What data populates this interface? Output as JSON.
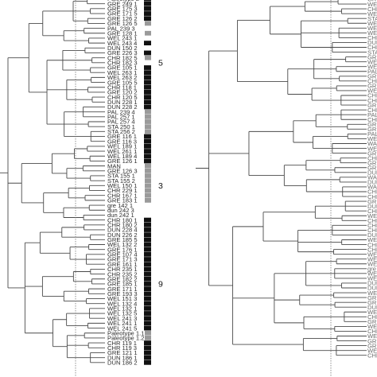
{
  "colors": {
    "branch": "#4a4a4a",
    "dark_block": "#111111",
    "grey_block": "#9a9a9a",
    "cutoff_line": "#777777"
  },
  "left_tree": {
    "leaves": [
      {
        "label": "Paleotype 2",
        "group": "D"
      },
      {
        "label": "GRE 249 1",
        "group": "D"
      },
      {
        "label": "GRE 175 3",
        "group": "D"
      },
      {
        "label": "GRE 171 5",
        "group": "D"
      },
      {
        "label": "GRE 126 2",
        "group": "D"
      },
      {
        "label": "GRE 126 5",
        "group": "G"
      },
      {
        "label": "PAL 239 3",
        "group": null
      },
      {
        "label": "GRE 128 1",
        "group": "G"
      },
      {
        "label": "WEL 243 1",
        "group": null
      },
      {
        "label": "WEL 243 4",
        "group": "D"
      },
      {
        "label": "DUN 150 2",
        "group": null
      },
      {
        "label": "GRE 226 3",
        "group": "D"
      },
      {
        "label": "CHR 182 5",
        "group": "G"
      },
      {
        "label": "CHR 182 3",
        "group": null
      },
      {
        "label": "GRE 105 1",
        "group": "D"
      },
      {
        "label": "WEL 263 1",
        "group": "D"
      },
      {
        "label": "WEL 263 2",
        "group": "D"
      },
      {
        "label": "GRE 105 5",
        "group": "D"
      },
      {
        "label": "CHR 118 1",
        "group": "D"
      },
      {
        "label": "GRE 120 2",
        "group": "D"
      },
      {
        "label": "CHR 120 5",
        "group": "D"
      },
      {
        "label": "DUN 228 1",
        "group": "D"
      },
      {
        "label": "DUN 228 2",
        "group": "D"
      },
      {
        "label": "PAL 239 4",
        "group": "G"
      },
      {
        "label": "PAL 257 1",
        "group": "G"
      },
      {
        "label": "PAL 257 4",
        "group": "G"
      },
      {
        "label": "STA 250 1",
        "group": "G"
      },
      {
        "label": "STA 256 2",
        "group": "G"
      },
      {
        "label": "GRE 116 1",
        "group": "D"
      },
      {
        "label": "GRE 116 3",
        "group": "D"
      },
      {
        "label": "WEL 189 1",
        "group": "D"
      },
      {
        "label": "WEL 261 1",
        "group": "D"
      },
      {
        "label": "WEL 189 4",
        "group": "D"
      },
      {
        "label": "GRE 126 1",
        "group": "D"
      },
      {
        "label": "MAN",
        "group": "G"
      },
      {
        "label": "GRE 126 3",
        "group": "G"
      },
      {
        "label": "STA 155 1",
        "group": "G"
      },
      {
        "label": "STA 155 2",
        "group": "G"
      },
      {
        "label": "WEL 150 1",
        "group": "G"
      },
      {
        "label": "CHR 229 1",
        "group": "G"
      },
      {
        "label": "CHR 167 1",
        "group": "G"
      },
      {
        "label": "GRE 183 1",
        "group": "G"
      },
      {
        "label": "gre 142 1",
        "group": null
      },
      {
        "label": "dun 242 3",
        "group": null
      },
      {
        "label": "dun 242 1",
        "group": null
      },
      {
        "label": "CHR 180 1",
        "group": "D"
      },
      {
        "label": "CHR 180 2",
        "group": "D"
      },
      {
        "label": "DUN 228 4",
        "group": "D"
      },
      {
        "label": "DUN 226 2",
        "group": "D"
      },
      {
        "label": "GRE 185 5",
        "group": "D"
      },
      {
        "label": "WEL 132 2",
        "group": "D"
      },
      {
        "label": "GRE 176 1",
        "group": "D"
      },
      {
        "label": "GRE 107 4",
        "group": "D"
      },
      {
        "label": "GRE 171 3",
        "group": "D"
      },
      {
        "label": "GRE 161 1",
        "group": "D"
      },
      {
        "label": "CHR 235 1",
        "group": "D"
      },
      {
        "label": "CHR 235 2",
        "group": "D"
      },
      {
        "label": "GRE 182 2",
        "group": "D"
      },
      {
        "label": "GRE 185 1",
        "group": "D"
      },
      {
        "label": "GRE 171 1",
        "group": "D"
      },
      {
        "label": "GRE 193 3",
        "group": "D"
      },
      {
        "label": "WEL 151 3",
        "group": "D"
      },
      {
        "label": "WEL 132 4",
        "group": "D"
      },
      {
        "label": "WEL 132 1",
        "group": "D"
      },
      {
        "label": "WEL 132 5",
        "group": "D"
      },
      {
        "label": "WEL 241 3",
        "group": "D"
      },
      {
        "label": "WEL 241 1",
        "group": "D"
      },
      {
        "label": "WEL 241 5",
        "group": "D"
      },
      {
        "label": "Paleotype 1.1",
        "group": "G"
      },
      {
        "label": "Paleotype 1.2",
        "group": "G"
      },
      {
        "label": "CHR 119 1",
        "group": "D"
      },
      {
        "label": "CHR 119 3",
        "group": "D"
      },
      {
        "label": "GRE 121 1",
        "group": "D"
      },
      {
        "label": "DUN 186 1",
        "group": "D"
      },
      {
        "label": "DUN 186 2",
        "group": "D"
      }
    ],
    "cluster_labels": [
      {
        "text": "5",
        "leaf_index": 13
      },
      {
        "text": "3",
        "leaf_index": 38
      },
      {
        "text": "9",
        "leaf_index": 58
      }
    ]
  },
  "right_tree": {
    "leaves": [
      "GRE",
      "WEL",
      "CHR",
      "WEL",
      "STA",
      "WEL",
      "WEL",
      "WEL",
      "CHR",
      "DUN",
      "CHR",
      "STA",
      "GRE",
      "WEL",
      "WEL",
      "PAL",
      "GRE",
      "CHR",
      "GRE",
      "WEL",
      "CHR",
      "CHR",
      "GRE",
      "CHR",
      "PAL",
      "CHR",
      "GRE",
      "GRE",
      "PAL",
      "WEL",
      "WAI",
      "WEL",
      "GRE",
      "CHR",
      "GRE",
      "GRE",
      "DUN",
      "WAI",
      "DUN",
      "WAI",
      "CHR",
      "CHR",
      "GRE",
      "DUN",
      "CHR",
      "WEL",
      "CHR",
      "CHR",
      "CHR",
      "DUN",
      "WEL",
      "CHR",
      "CHR",
      "WEL",
      "WEL",
      "WEL",
      "gre",
      "WEL",
      "WEL",
      "DUN",
      "DUN",
      "WEL",
      "GRE",
      "GRE",
      "DUN",
      "WEL",
      "CHR",
      "GRE",
      "WEL",
      "CHR",
      "WEL",
      "GRE",
      "GRE",
      "WEL",
      "CHR"
    ]
  }
}
